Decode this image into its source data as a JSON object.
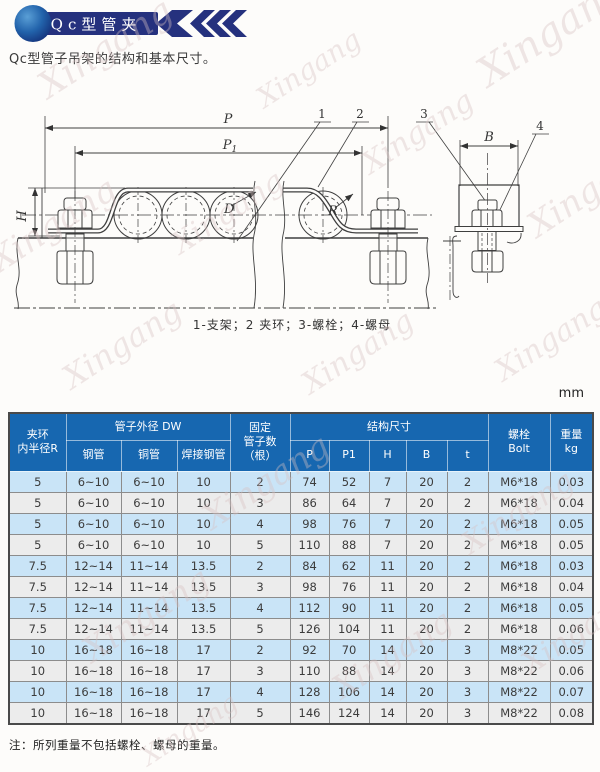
{
  "colors": {
    "banner_navy": "#25317e",
    "table_header_blue": "#1767b0",
    "row_blue": "#c9e4f7",
    "row_gray": "#ececec"
  },
  "watermark": {
    "text": "Xingang"
  },
  "banner": {
    "title": "Qc型管夹"
  },
  "page": {
    "subtitle": "Qc型管子吊架的结构和基本尺寸。",
    "unit_label": "mm",
    "note": "注：所列重量不包括螺栓、螺母的重量。"
  },
  "diagram": {
    "caption": "1-支架；2 夹环；3-螺栓；4-螺母",
    "labels": {
      "p": "P",
      "p1_main": "P",
      "p1_sub": "1",
      "h": "H",
      "b": "B",
      "d": "D",
      "r": "R"
    },
    "callouts": [
      "1",
      "2",
      "3",
      "4"
    ]
  },
  "table": {
    "header": {
      "col_r": "夹环\n内半径R",
      "group_dw": "管子外径 DW",
      "sub_steel": "钢管",
      "sub_copper": "铜管",
      "sub_welded": "焊接钢管",
      "col_count": "固定\n管子数\n（根）",
      "group_dim": "结构尺寸",
      "dims": [
        "P",
        "P1",
        "H",
        "B",
        "t"
      ],
      "col_bolt": "螺栓\nBolt",
      "col_weight": "重量\nkg"
    },
    "rows": [
      [
        "5",
        "6~10",
        "6~10",
        "10",
        "2",
        "74",
        "52",
        "7",
        "20",
        "2",
        "M6*18",
        "0.03"
      ],
      [
        "5",
        "6~10",
        "6~10",
        "10",
        "3",
        "86",
        "64",
        "7",
        "20",
        "2",
        "M6*18",
        "0.04"
      ],
      [
        "5",
        "6~10",
        "6~10",
        "10",
        "4",
        "98",
        "76",
        "7",
        "20",
        "2",
        "M6*18",
        "0.05"
      ],
      [
        "5",
        "6~10",
        "6~10",
        "10",
        "5",
        "110",
        "88",
        "7",
        "20",
        "2",
        "M6*18",
        "0.05"
      ],
      [
        "7.5",
        "12~14",
        "11~14",
        "13.5",
        "2",
        "84",
        "62",
        "11",
        "20",
        "2",
        "M6*18",
        "0.03"
      ],
      [
        "7.5",
        "12~14",
        "11~14",
        "13.5",
        "3",
        "98",
        "76",
        "11",
        "20",
        "2",
        "M6*18",
        "0.04"
      ],
      [
        "7.5",
        "12~14",
        "11~14",
        "13.5",
        "4",
        "112",
        "90",
        "11",
        "20",
        "2",
        "M6*18",
        "0.05"
      ],
      [
        "7.5",
        "12~14",
        "11~14",
        "13.5",
        "5",
        "126",
        "104",
        "11",
        "20",
        "2",
        "M6*18",
        "0.06"
      ],
      [
        "10",
        "16~18",
        "16~18",
        "17",
        "2",
        "92",
        "70",
        "14",
        "20",
        "3",
        "M8*22",
        "0.05"
      ],
      [
        "10",
        "16~18",
        "16~18",
        "17",
        "3",
        "110",
        "88",
        "14",
        "20",
        "3",
        "M8*22",
        "0.06"
      ],
      [
        "10",
        "16~18",
        "16~18",
        "17",
        "4",
        "128",
        "106",
        "14",
        "20",
        "3",
        "M8*22",
        "0.07"
      ],
      [
        "10",
        "16~18",
        "16~18",
        "17",
        "5",
        "146",
        "124",
        "14",
        "20",
        "3",
        "M8*22",
        "0.08"
      ]
    ]
  }
}
